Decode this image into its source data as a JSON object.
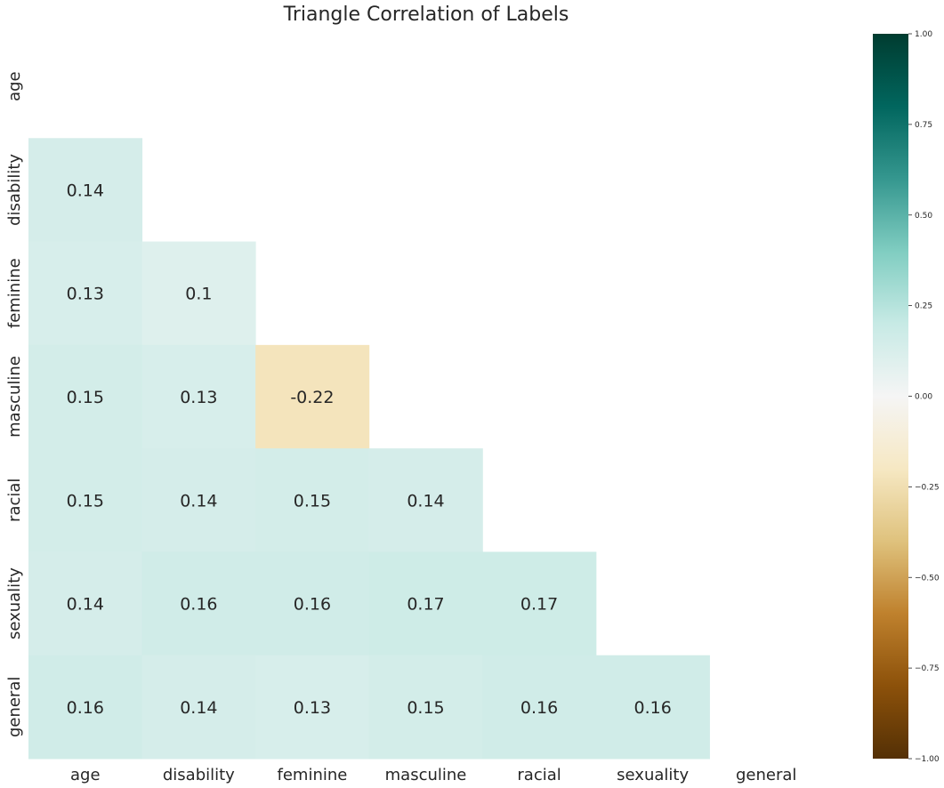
{
  "chart_data": {
    "type": "heatmap",
    "title": "Triangle Correlation of Labels",
    "labels": [
      "age",
      "disability",
      "feminine",
      "masculine",
      "racial",
      "sexuality",
      "general"
    ],
    "mask": "upper-triangle-including-diagonal",
    "matrix": [
      [
        null,
        null,
        null,
        null,
        null,
        null,
        null
      ],
      [
        0.14,
        null,
        null,
        null,
        null,
        null,
        null
      ],
      [
        0.13,
        0.1,
        null,
        null,
        null,
        null,
        null
      ],
      [
        0.15,
        0.13,
        -0.22,
        null,
        null,
        null,
        null
      ],
      [
        0.15,
        0.14,
        0.15,
        0.14,
        null,
        null,
        null
      ],
      [
        0.14,
        0.16,
        0.16,
        0.17,
        0.17,
        null,
        null
      ],
      [
        0.16,
        0.14,
        0.13,
        0.15,
        0.16,
        0.16,
        null
      ]
    ],
    "cell_text": [
      [
        null,
        null,
        null,
        null,
        null,
        null,
        null
      ],
      [
        "0.14",
        null,
        null,
        null,
        null,
        null,
        null
      ],
      [
        "0.13",
        "0.1",
        null,
        null,
        null,
        null,
        null
      ],
      [
        "0.15",
        "0.13",
        "-0.22",
        null,
        null,
        null,
        null
      ],
      [
        "0.15",
        "0.14",
        "0.15",
        "0.14",
        null,
        null,
        null
      ],
      [
        "0.14",
        "0.16",
        "0.16",
        "0.17",
        "0.17",
        null,
        null
      ],
      [
        "0.16",
        "0.14",
        "0.13",
        "0.15",
        "0.16",
        "0.16",
        null
      ]
    ],
    "colormap": "BrBG",
    "vmin": -1,
    "vmax": 1,
    "colorbar_ticks": [
      "1.00",
      "0.75",
      "0.50",
      "0.25",
      "0.00",
      "−0.25",
      "−0.50",
      "−0.75",
      "−1.00"
    ],
    "colorbar_tick_values": [
      1,
      0.75,
      0.5,
      0.25,
      0,
      -0.25,
      -0.5,
      -0.75,
      -1
    ]
  }
}
